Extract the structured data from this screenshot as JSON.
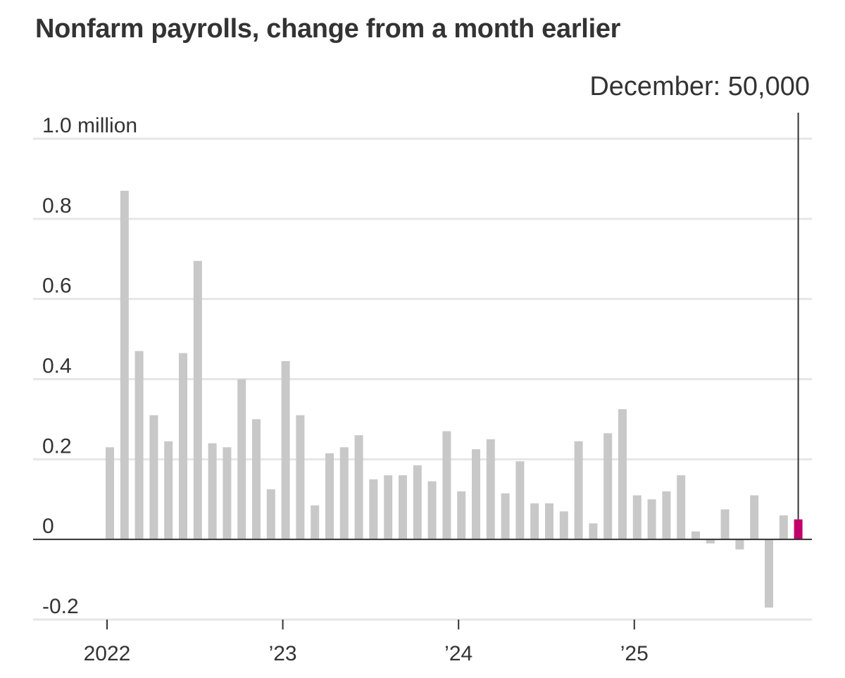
{
  "chart_data": {
    "type": "bar",
    "title": "Nonfarm payrolls, change from a month earlier",
    "xlabel": "",
    "ylabel": "",
    "unit_label": "million",
    "ylim": [
      -0.2,
      1.0
    ],
    "y_ticks": [
      {
        "value": 1.0,
        "label": "1.0 million"
      },
      {
        "value": 0.8,
        "label": "0.8"
      },
      {
        "value": 0.6,
        "label": "0.6"
      },
      {
        "value": 0.4,
        "label": "0.4"
      },
      {
        "value": 0.2,
        "label": "0.2"
      },
      {
        "value": 0,
        "label": "0"
      },
      {
        "value": -0.2,
        "label": "-0.2"
      }
    ],
    "x_ticks": [
      {
        "index": 0,
        "label": "2022"
      },
      {
        "index": 12,
        "label": "’23"
      },
      {
        "index": 24,
        "label": "’24"
      },
      {
        "index": 36,
        "label": "’25"
      }
    ],
    "categories": [
      "Jan 2022",
      "Feb 2022",
      "Mar 2022",
      "Apr 2022",
      "May 2022",
      "Jun 2022",
      "Jul 2022",
      "Aug 2022",
      "Sep 2022",
      "Oct 2022",
      "Nov 2022",
      "Dec 2022",
      "Jan 2023",
      "Feb 2023",
      "Mar 2023",
      "Apr 2023",
      "May 2023",
      "Jun 2023",
      "Jul 2023",
      "Aug 2023",
      "Sep 2023",
      "Oct 2023",
      "Nov 2023",
      "Dec 2023",
      "Jan 2024",
      "Feb 2024",
      "Mar 2024",
      "Apr 2024",
      "May 2024",
      "Jun 2024",
      "Jul 2024",
      "Aug 2024",
      "Sep 2024",
      "Oct 2024",
      "Nov 2024",
      "Dec 2024",
      "Jan 2025",
      "Feb 2025",
      "Mar 2025",
      "Apr 2025",
      "May 2025",
      "Jun 2025",
      "Jul 2025",
      "Aug 2025",
      "Sep 2025",
      "Oct 2025",
      "Nov 2025",
      "Dec 2025"
    ],
    "values": [
      0.23,
      0.87,
      0.47,
      0.31,
      0.245,
      0.465,
      0.695,
      0.24,
      0.23,
      0.4,
      0.3,
      0.125,
      0.445,
      0.31,
      0.085,
      0.215,
      0.23,
      0.26,
      0.15,
      0.16,
      0.16,
      0.185,
      0.145,
      0.27,
      0.12,
      0.225,
      0.25,
      0.115,
      0.195,
      0.09,
      0.09,
      0.07,
      0.245,
      0.04,
      0.265,
      0.325,
      0.11,
      0.1,
      0.12,
      0.16,
      0.02,
      -0.01,
      0.075,
      -0.025,
      0.11,
      -0.17,
      0.06,
      0.05
    ],
    "bar_color": "#c8c8c8",
    "highlight_index": 47,
    "highlight_color": "#c2006b",
    "annotation": "December: 50,000"
  }
}
